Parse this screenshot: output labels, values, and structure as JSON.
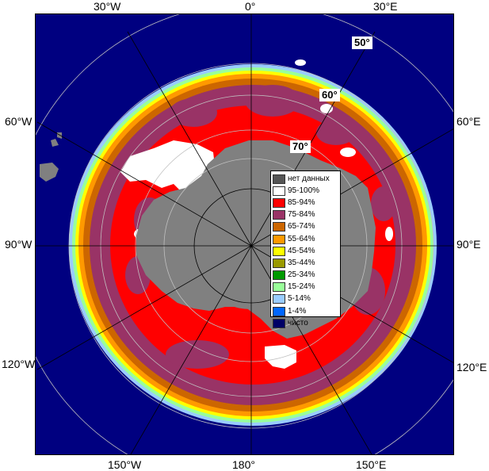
{
  "longitude_labels": {
    "top": [
      "30°W",
      "0°",
      "30°E"
    ],
    "left": [
      "60°W",
      "90°W",
      "120°W"
    ],
    "right": [
      "60°E",
      "90°E",
      "120°E"
    ],
    "bottom": [
      "150°W",
      "180°",
      "150°E"
    ]
  },
  "latitude_labels": [
    "50°",
    "60°",
    "70°"
  ],
  "legend": {
    "items": [
      {
        "label": "нет данных",
        "color": "#555555"
      },
      {
        "label": "95-100%",
        "color": "#ffffff"
      },
      {
        "label": "85-94%",
        "color": "#ff0000"
      },
      {
        "label": "75-84%",
        "color": "#993366"
      },
      {
        "label": "65-74%",
        "color": "#cc6600"
      },
      {
        "label": "55-64%",
        "color": "#ff9900"
      },
      {
        "label": "45-54%",
        "color": "#ffff00"
      },
      {
        "label": "35-44%",
        "color": "#999900"
      },
      {
        "label": "25-34%",
        "color": "#009900"
      },
      {
        "label": "15-24%",
        "color": "#99ff99"
      },
      {
        "label": "5-14%",
        "color": "#99ccff"
      },
      {
        "label": "1-4%",
        "color": "#0066ff"
      },
      {
        "label": "чисто",
        "color": "#000066"
      }
    ]
  },
  "colors": {
    "ocean": "#000080",
    "land": "#808080",
    "no_data": "#555555",
    "ice_95_100": "#ffffff",
    "ice_85_94": "#ff0000",
    "ice_75_84": "#993366",
    "ice_65_74": "#cc6600",
    "ice_55_64": "#ff9900",
    "ice_45_54": "#ffff00",
    "ice_15_24": "#99ff99",
    "ice_5_14": "#99ccff",
    "graticule": "#c0c0c0"
  }
}
